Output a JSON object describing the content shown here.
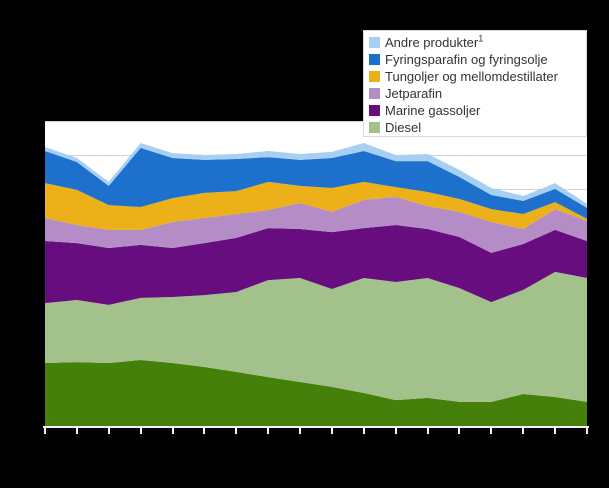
{
  "page": {
    "background_color": "#000000",
    "plot_background_color": "#ffffff",
    "gridline_color": "#d2d2d2",
    "axis_color": "#f4f4f4",
    "legend_border_color": "#d9d9d9",
    "legend_text_color": "#333333"
  },
  "legend": {
    "items": [
      {
        "label": "Andre produkter",
        "superscript": "1",
        "color": "#a6cff2"
      },
      {
        "label": "Fyringsparafin og fyringsolje",
        "superscript": "",
        "color": "#1d71cd"
      },
      {
        "label": "Tungoljer og mellomdestillater",
        "superscript": "",
        "color": "#ecb018"
      },
      {
        "label": "Jetparafin",
        "superscript": "",
        "color": "#b48cc6"
      },
      {
        "label": "Marine gassoljer",
        "superscript": "",
        "color": "#680d80"
      },
      {
        "label": "Diesel",
        "superscript": "",
        "color": "#a3c18a"
      }
    ]
  },
  "chart_data": {
    "type": "area",
    "stacked": true,
    "title": "",
    "xlabel": "",
    "ylabel": "",
    "x_point_count": 18,
    "x_tick_count": 18,
    "x_tick_labels_visible": false,
    "y_tick_labels_visible": false,
    "gridline_row_count": 9,
    "value_unit": "percent of plot height (no numeric axis labels visible)",
    "ylim": [
      0,
      100
    ],
    "series": [
      {
        "name": "unlabeled-dark-green-series",
        "in_legend": false,
        "color": "#44800a",
        "values": [
          20.9,
          21.2,
          20.9,
          21.9,
          20.9,
          19.6,
          18.0,
          16.3,
          14.7,
          13.1,
          11.1,
          8.8,
          9.5,
          8.2,
          8.2,
          10.8,
          9.8,
          8.2
        ]
      },
      {
        "name": "Diesel",
        "in_legend": true,
        "color": "#a3c18a",
        "values": [
          19.6,
          20.3,
          19.0,
          20.3,
          21.6,
          23.5,
          26.1,
          31.7,
          34.0,
          32.0,
          37.6,
          38.6,
          39.2,
          37.2,
          32.6,
          34.0,
          40.9,
          40.5
        ]
      },
      {
        "name": "Marine gassoljer",
        "in_legend": true,
        "color": "#680d80",
        "values": [
          20.3,
          18.6,
          18.6,
          17.3,
          16.0,
          17.0,
          17.7,
          17.0,
          16.0,
          18.6,
          16.3,
          18.6,
          16.0,
          16.7,
          16.1,
          15.0,
          13.7,
          12.1
        ]
      },
      {
        "name": "Jetparafin",
        "in_legend": true,
        "color": "#b48cc6",
        "values": [
          7.5,
          5.9,
          5.9,
          4.9,
          8.5,
          8.2,
          7.8,
          5.9,
          8.5,
          6.6,
          9.2,
          9.2,
          7.5,
          8.2,
          10.1,
          4.9,
          6.8,
          6.5
        ]
      },
      {
        "name": "Tungoljer og mellomdestillater",
        "in_legend": true,
        "color": "#ecb018",
        "values": [
          11.4,
          11.5,
          8.1,
          7.5,
          7.8,
          8.2,
          7.5,
          9.2,
          5.6,
          7.8,
          5.9,
          3.2,
          4.6,
          4.2,
          4.2,
          4.9,
          2.3,
          0.7
        ]
      },
      {
        "name": "Fyringsparafin og fyringsolje",
        "in_legend": true,
        "color": "#1d71cd",
        "values": [
          10.5,
          9.1,
          6.3,
          19.3,
          13.1,
          10.8,
          10.5,
          8.1,
          8.5,
          9.8,
          10.1,
          8.5,
          10.1,
          7.2,
          4.6,
          4.3,
          4.3,
          3.6
        ]
      },
      {
        "name": "Andre produkter",
        "in_legend": true,
        "color": "#a6cff2",
        "values": [
          1.3,
          1.3,
          1.3,
          1.6,
          1.6,
          1.6,
          1.6,
          2.0,
          1.9,
          2.0,
          2.6,
          2.0,
          2.3,
          2.3,
          2.3,
          1.6,
          1.9,
          1.3
        ]
      }
    ]
  }
}
